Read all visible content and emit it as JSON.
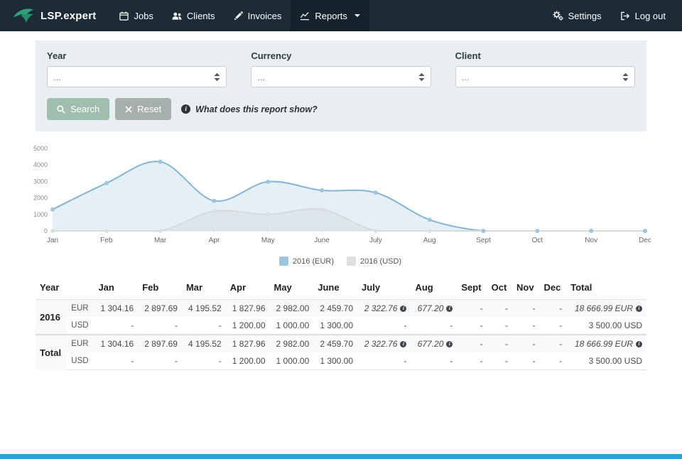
{
  "navbar": {
    "brand": "LSP.expert",
    "items": [
      {
        "label": "Jobs",
        "icon": "calendar-icon"
      },
      {
        "label": "Clients",
        "icon": "users-icon"
      },
      {
        "label": "Invoices",
        "icon": "pencil-icon"
      },
      {
        "label": "Reports",
        "icon": "chart-icon",
        "active": true
      }
    ],
    "right": [
      {
        "label": "Settings",
        "icon": "gears-icon"
      },
      {
        "label": "Log out",
        "icon": "logout-icon"
      }
    ]
  },
  "filters": {
    "fields": [
      {
        "label": "Year",
        "value": "..."
      },
      {
        "label": "Currency",
        "value": "..."
      },
      {
        "label": "Client",
        "value": "..."
      }
    ],
    "search_label": "Search",
    "reset_label": "Reset",
    "info_text": "What does this report show?"
  },
  "chart_data": {
    "type": "area",
    "title": "",
    "x": [
      "Jan",
      "Feb",
      "Mar",
      "Apr",
      "May",
      "June",
      "July",
      "Aug",
      "Sept",
      "Oct",
      "Nov",
      "Dec"
    ],
    "series": [
      {
        "name": "2016 (EUR)",
        "color": "#85b5d6",
        "fill": "rgba(133,181,214,0.22)",
        "marker": "#9fc4dd",
        "values": [
          1304.16,
          2897.69,
          4195.52,
          1827.96,
          2982.0,
          2459.7,
          2322.76,
          677.2,
          0,
          0,
          0,
          0
        ]
      },
      {
        "name": "2016 (USD)",
        "color": "#d6dadd",
        "fill": "rgba(214,218,221,0.45)",
        "marker": "#dcdfe2",
        "values": [
          0,
          0,
          0,
          1200.0,
          1000.0,
          1300.0,
          0,
          0,
          0,
          0,
          0,
          0
        ]
      }
    ],
    "ylim": [
      0,
      5000
    ],
    "yticks": [
      0,
      1000,
      2000,
      3000,
      4000,
      5000
    ],
    "grid": false,
    "legend_position": "bottom"
  },
  "table": {
    "headers": [
      "Year",
      "",
      "Jan",
      "Feb",
      "Mar",
      "Apr",
      "May",
      "June",
      "July",
      "Aug",
      "Sept",
      "Oct",
      "Nov",
      "Dec",
      "Total"
    ],
    "groups": [
      {
        "label": "2016",
        "rows": [
          {
            "currency": "EUR",
            "cells": [
              "1 304.16",
              "2 897.69",
              "4 195.52",
              "1 827.96",
              "2 982.00",
              "2 459.70",
              {
                "v": "2 322.76",
                "i": true
              },
              {
                "v": "677.20",
                "i": true
              },
              "-",
              "-",
              "-",
              "-",
              {
                "v": "18 666.99 EUR",
                "i": true
              }
            ]
          },
          {
            "currency": "USD",
            "cells": [
              "-",
              "-",
              "-",
              "1 200.00",
              "1 000.00",
              "1 300.00",
              "-",
              "-",
              "-",
              "-",
              "-",
              "-",
              "3 500.00 USD"
            ]
          }
        ]
      },
      {
        "label": "Total",
        "rows": [
          {
            "currency": "EUR",
            "cells": [
              "1 304.16",
              "2 897.69",
              "4 195.52",
              "1 827.96",
              "2 982.00",
              "2 459.70",
              {
                "v": "2 322.76",
                "i": true
              },
              {
                "v": "677.20",
                "i": true
              },
              "-",
              "-",
              "-",
              "-",
              {
                "v": "18 666.99 EUR",
                "i": true
              }
            ]
          },
          {
            "currency": "USD",
            "cells": [
              "-",
              "-",
              "-",
              "1 200.00",
              "1 000.00",
              "1 300.00",
              "-",
              "-",
              "-",
              "-",
              "-",
              "-",
              "3 500.00 USD"
            ]
          }
        ]
      }
    ]
  },
  "colors": {
    "navbar_bg": "#1d2b36",
    "navbar_active_bg": "#15212b",
    "panel_bg": "#e9eef0",
    "brand_green": "#2fa87c",
    "search_button": "#a0bead",
    "reset_button": "#a7afab",
    "footer_bar": "#2aa0dc"
  }
}
